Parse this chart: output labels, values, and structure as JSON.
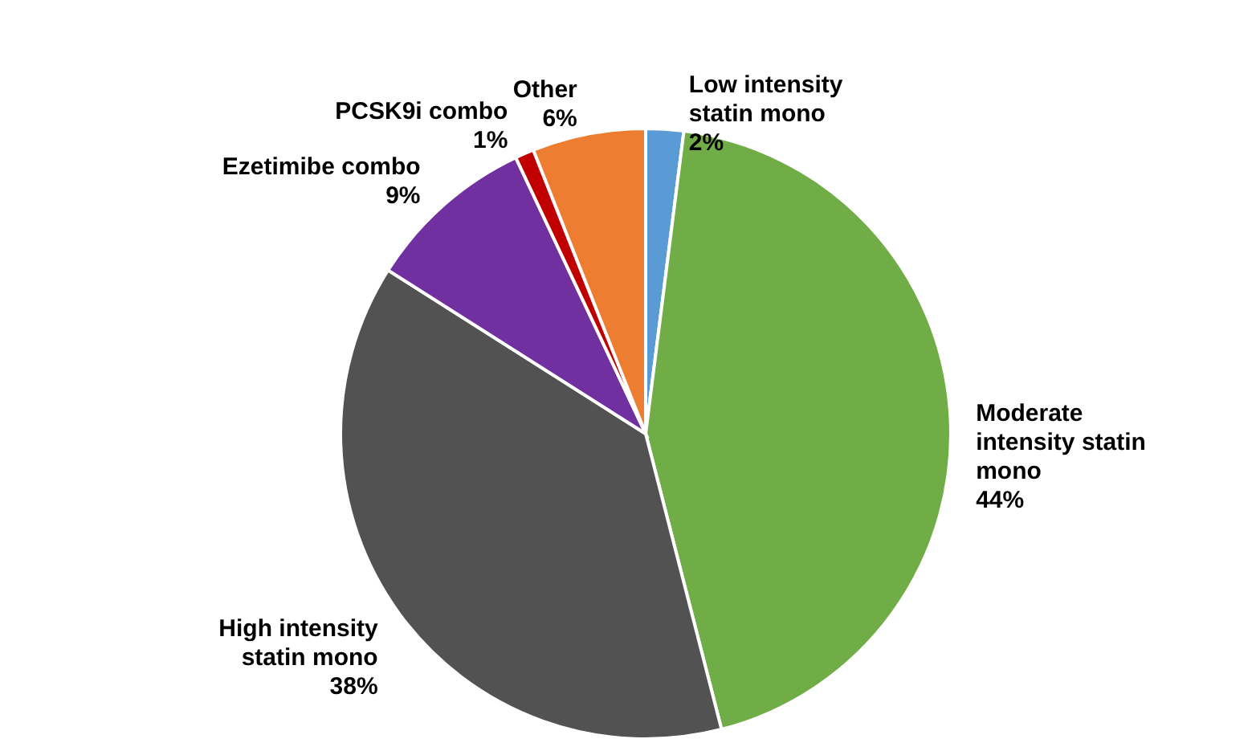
{
  "chart_data": {
    "type": "pie",
    "categories": [
      "Low intensity statin mono",
      "Moderate intensity statin mono",
      "High intensity statin mono",
      "Ezetimibe combo",
      "PCSK9i combo",
      "Other"
    ],
    "values": [
      2,
      44,
      38,
      9,
      1,
      6
    ],
    "value_labels": [
      "2%",
      "44%",
      "38%",
      "9%",
      "1%",
      "6%"
    ],
    "colors": [
      "#5b9bd5",
      "#70ad47",
      "#525252",
      "#7030a0",
      "#c00000",
      "#ed7d31"
    ]
  }
}
